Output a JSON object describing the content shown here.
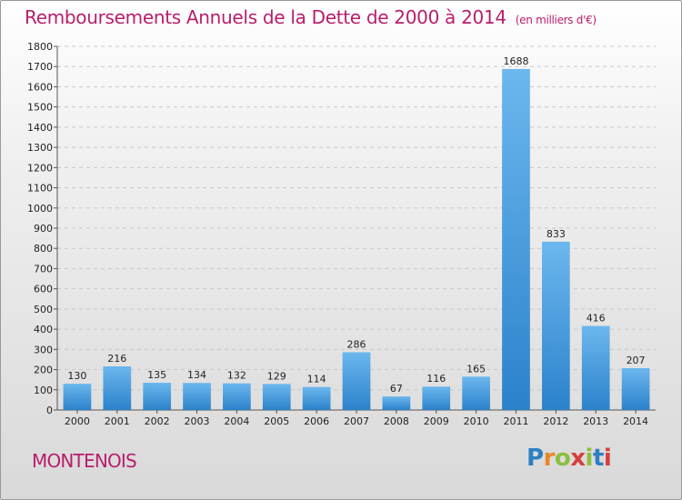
{
  "title": "Remboursements Annuels de la Dette de 2000 à 2014",
  "subtitle": "(en milliers d'€)",
  "commune": "MONTENOIS",
  "logo": {
    "letters": [
      "P",
      "r",
      "o",
      "x",
      "i",
      "t",
      "i"
    ],
    "colors": [
      "#2e7fc3",
      "#e8872a",
      "#8cbf3f",
      "#d6403a",
      "#8cbf3f",
      "#2e7fc3",
      "#d6403a"
    ]
  },
  "colors": {
    "bar_light": "#6cb7ee",
    "bar_dark": "#2b82cb",
    "text": "#b81e6c"
  },
  "chart_data": {
    "type": "bar",
    "categories": [
      "2000",
      "2001",
      "2002",
      "2003",
      "2004",
      "2005",
      "2006",
      "2007",
      "2008",
      "2009",
      "2010",
      "2011",
      "2012",
      "2013",
      "2014"
    ],
    "values": [
      130,
      216,
      135,
      134,
      132,
      129,
      114,
      286,
      67,
      116,
      165,
      1688,
      833,
      416,
      207
    ],
    "ylim": [
      0,
      1800
    ],
    "yticks": [
      0,
      100,
      200,
      300,
      400,
      500,
      600,
      700,
      800,
      900,
      1000,
      1100,
      1200,
      1300,
      1400,
      1500,
      1600,
      1700,
      1800
    ],
    "grid": true
  }
}
